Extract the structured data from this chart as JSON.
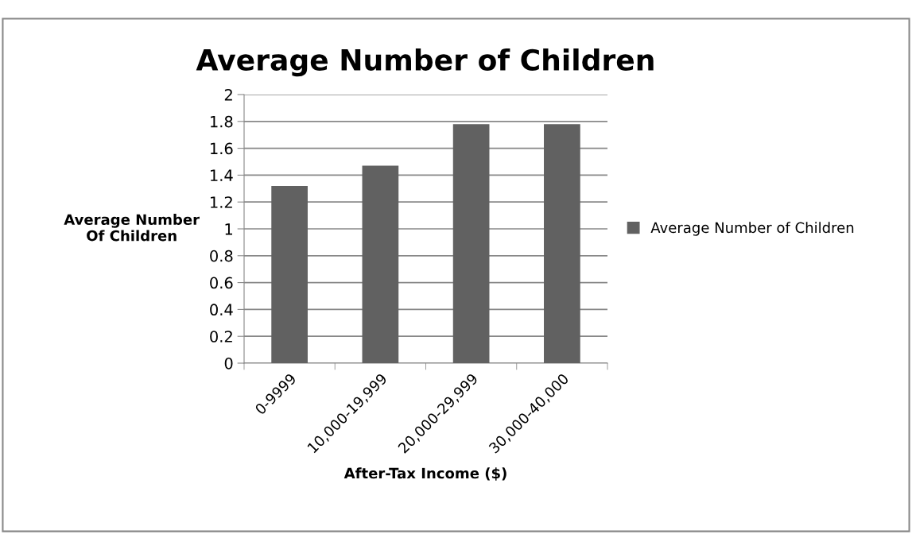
{
  "chart_data": {
    "type": "bar",
    "title": "Average Number of Children",
    "xlabel": "After-Tax Income ($)",
    "ylabel": "Average Number\nOf Children",
    "categories": [
      "0-9999",
      "10,000-19,999",
      "20,000-29,999",
      "30,000-40,000"
    ],
    "series": [
      {
        "name": "Average Number of Children",
        "color": "#616161",
        "values": [
          1.32,
          1.47,
          1.78,
          1.78
        ]
      }
    ],
    "ylim": [
      0,
      2
    ],
    "yticks": [
      0,
      0.2,
      0.4,
      0.6,
      0.8,
      1,
      1.2,
      1.4,
      1.6,
      1.8,
      2
    ],
    "grid": "y",
    "legend": "right"
  }
}
